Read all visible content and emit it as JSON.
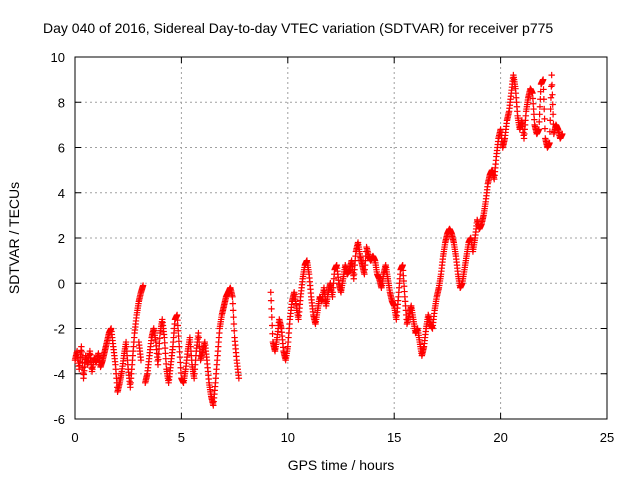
{
  "chart_data": {
    "type": "scatter",
    "title": "Day 040 of 2016, Sidereal Day-to-day VTEC variation (SDTVAR) for receiver p775",
    "xlabel": "GPS time / hours",
    "ylabel": "SDTVAR / TECUs",
    "xlim": [
      0,
      25
    ],
    "ylim": [
      -6,
      10
    ],
    "x_ticks": [
      "0",
      "5",
      "10",
      "15",
      "20",
      "25"
    ],
    "y_ticks": [
      "-6",
      "-4",
      "-2",
      "0",
      "2",
      "4",
      "6",
      "8",
      "10"
    ],
    "grid": true,
    "marker": "+",
    "color": "#ff0000",
    "series": [
      {
        "name": "",
        "points": [
          [
            0.0,
            -3.4
          ],
          [
            0.1,
            -3.0
          ],
          [
            0.2,
            -3.8
          ],
          [
            0.3,
            -2.8
          ],
          [
            0.4,
            -4.2
          ],
          [
            0.5,
            -3.2
          ],
          [
            0.6,
            -3.6
          ],
          [
            0.7,
            -3.0
          ],
          [
            0.8,
            -3.9
          ],
          [
            0.9,
            -3.3
          ],
          [
            1.0,
            -3.5
          ],
          [
            1.1,
            -3.1
          ],
          [
            1.2,
            -3.7
          ],
          [
            1.3,
            -3.4
          ],
          [
            1.4,
            -3.0
          ],
          [
            1.5,
            -2.6
          ],
          [
            1.6,
            -2.2
          ],
          [
            1.7,
            -2.0
          ],
          [
            1.8,
            -2.8
          ],
          [
            1.9,
            -3.6
          ],
          [
            2.0,
            -4.8
          ],
          [
            2.1,
            -4.4
          ],
          [
            2.2,
            -3.9
          ],
          [
            2.3,
            -3.2
          ],
          [
            2.4,
            -2.6
          ],
          [
            2.5,
            -3.8
          ],
          [
            2.6,
            -4.6
          ],
          [
            2.7,
            -3.4
          ],
          [
            2.8,
            -2.2
          ],
          [
            2.9,
            -1.4
          ],
          [
            3.0,
            -0.8
          ],
          [
            3.1,
            -0.4
          ],
          [
            3.2,
            -0.1
          ],
          [
            3.0,
            -2.6
          ],
          [
            3.1,
            -3.4
          ],
          [
            3.3,
            -4.4
          ],
          [
            3.4,
            -4.0
          ],
          [
            3.5,
            -3.2
          ],
          [
            3.6,
            -2.4
          ],
          [
            3.7,
            -2.0
          ],
          [
            3.8,
            -2.6
          ],
          [
            3.9,
            -3.6
          ],
          [
            4.0,
            -2.2
          ],
          [
            4.1,
            -1.6
          ],
          [
            4.2,
            -2.4
          ],
          [
            4.3,
            -3.8
          ],
          [
            4.4,
            -4.4
          ],
          [
            4.5,
            -3.6
          ],
          [
            4.6,
            -2.8
          ],
          [
            4.7,
            -1.6
          ],
          [
            4.8,
            -1.4
          ],
          [
            4.9,
            -2.8
          ],
          [
            5.0,
            -4.2
          ],
          [
            5.1,
            -4.4
          ],
          [
            5.2,
            -3.8
          ],
          [
            5.3,
            -3.0
          ],
          [
            5.4,
            -2.4
          ],
          [
            5.5,
            -3.6
          ],
          [
            5.6,
            -4.2
          ],
          [
            5.7,
            -3.0
          ],
          [
            5.8,
            -2.2
          ],
          [
            5.9,
            -3.4
          ],
          [
            6.0,
            -3.0
          ],
          [
            6.1,
            -2.6
          ],
          [
            6.2,
            -3.4
          ],
          [
            6.3,
            -4.4
          ],
          [
            6.4,
            -5.0
          ],
          [
            6.5,
            -5.4
          ],
          [
            6.6,
            -4.4
          ],
          [
            6.7,
            -3.2
          ],
          [
            6.8,
            -2.0
          ],
          [
            6.9,
            -1.4
          ],
          [
            7.0,
            -1.0
          ],
          [
            7.1,
            -0.6
          ],
          [
            7.2,
            -0.4
          ],
          [
            7.3,
            -0.2
          ],
          [
            7.4,
            -0.6
          ],
          [
            7.5,
            -2.4
          ],
          [
            7.6,
            -3.4
          ],
          [
            7.7,
            -4.2
          ],
          [
            9.2,
            -0.4
          ],
          [
            9.3,
            -2.6
          ],
          [
            9.4,
            -3.0
          ],
          [
            9.5,
            -2.4
          ],
          [
            9.6,
            -1.6
          ],
          [
            9.7,
            -2.0
          ],
          [
            9.8,
            -3.0
          ],
          [
            9.9,
            -3.4
          ],
          [
            10.0,
            -2.8
          ],
          [
            10.1,
            -1.6
          ],
          [
            10.2,
            -0.8
          ],
          [
            10.3,
            -0.4
          ],
          [
            10.4,
            -1.0
          ],
          [
            10.5,
            -1.6
          ],
          [
            10.6,
            -0.6
          ],
          [
            10.7,
            0.2
          ],
          [
            10.8,
            0.8
          ],
          [
            10.9,
            1.0
          ],
          [
            11.0,
            0.4
          ],
          [
            11.1,
            -0.6
          ],
          [
            11.2,
            -1.4
          ],
          [
            11.3,
            -1.8
          ],
          [
            11.4,
            -1.2
          ],
          [
            11.5,
            -0.6
          ],
          [
            11.6,
            -0.8
          ],
          [
            11.7,
            -0.2
          ],
          [
            11.8,
            -1.0
          ],
          [
            11.9,
            -0.4
          ],
          [
            12.0,
            0.0
          ],
          [
            12.1,
            -0.6
          ],
          [
            12.2,
            0.6
          ],
          [
            12.3,
            0.8
          ],
          [
            12.4,
            0.0
          ],
          [
            12.5,
            -0.4
          ],
          [
            12.6,
            0.2
          ],
          [
            12.7,
            0.8
          ],
          [
            12.8,
            0.4
          ],
          [
            12.9,
            0.6
          ],
          [
            13.0,
            1.0
          ],
          [
            13.1,
            0.2
          ],
          [
            13.2,
            1.4
          ],
          [
            13.3,
            1.8
          ],
          [
            13.4,
            1.2
          ],
          [
            13.5,
            0.8
          ],
          [
            13.6,
            0.4
          ],
          [
            13.7,
            1.6
          ],
          [
            13.8,
            1.2
          ],
          [
            13.9,
            1.0
          ],
          [
            14.0,
            1.2
          ],
          [
            14.1,
            1.0
          ],
          [
            14.2,
            0.4
          ],
          [
            14.3,
            0.2
          ],
          [
            14.4,
            -0.2
          ],
          [
            14.5,
            0.4
          ],
          [
            14.6,
            0.8
          ],
          [
            14.7,
            0.2
          ],
          [
            14.8,
            -0.4
          ],
          [
            14.9,
            -0.8
          ],
          [
            15.0,
            -1.0
          ],
          [
            15.1,
            -1.6
          ],
          [
            15.2,
            -0.6
          ],
          [
            15.3,
            0.6
          ],
          [
            15.4,
            0.8
          ],
          [
            15.5,
            -0.6
          ],
          [
            15.6,
            -1.8
          ],
          [
            15.7,
            -1.4
          ],
          [
            15.8,
            -1.0
          ],
          [
            15.9,
            -1.6
          ],
          [
            16.0,
            -2.2
          ],
          [
            16.1,
            -2.0
          ],
          [
            16.2,
            -2.6
          ],
          [
            16.3,
            -3.2
          ],
          [
            16.4,
            -2.8
          ],
          [
            16.5,
            -2.0
          ],
          [
            16.6,
            -1.4
          ],
          [
            16.7,
            -1.8
          ],
          [
            16.8,
            -2.0
          ],
          [
            16.9,
            -1.2
          ],
          [
            17.0,
            -0.6
          ],
          [
            17.1,
            -0.2
          ],
          [
            17.2,
            0.4
          ],
          [
            17.3,
            1.2
          ],
          [
            17.4,
            1.8
          ],
          [
            17.5,
            2.2
          ],
          [
            17.6,
            2.4
          ],
          [
            17.7,
            2.2
          ],
          [
            17.8,
            1.8
          ],
          [
            17.9,
            1.2
          ],
          [
            18.0,
            0.4
          ],
          [
            18.1,
            -0.2
          ],
          [
            18.2,
            0.0
          ],
          [
            18.3,
            0.6
          ],
          [
            18.4,
            1.2
          ],
          [
            18.5,
            1.8
          ],
          [
            18.6,
            2.0
          ],
          [
            18.7,
            1.4
          ],
          [
            18.8,
            2.0
          ],
          [
            18.9,
            2.8
          ],
          [
            19.0,
            2.4
          ],
          [
            19.1,
            2.6
          ],
          [
            19.2,
            3.0
          ],
          [
            19.3,
            3.6
          ],
          [
            19.4,
            4.4
          ],
          [
            19.5,
            4.8
          ],
          [
            19.6,
            5.0
          ],
          [
            19.7,
            4.6
          ],
          [
            19.8,
            5.6
          ],
          [
            19.9,
            6.4
          ],
          [
            20.0,
            6.8
          ],
          [
            20.1,
            6.0
          ],
          [
            20.2,
            6.4
          ],
          [
            20.3,
            7.2
          ],
          [
            20.4,
            7.6
          ],
          [
            20.5,
            8.4
          ],
          [
            20.6,
            9.2
          ],
          [
            20.7,
            8.6
          ],
          [
            20.8,
            7.4
          ],
          [
            20.9,
            6.8
          ],
          [
            21.0,
            7.2
          ],
          [
            21.1,
            6.4
          ],
          [
            21.2,
            7.6
          ],
          [
            21.3,
            8.2
          ],
          [
            21.4,
            8.6
          ],
          [
            21.5,
            8.4
          ],
          [
            21.6,
            7.0
          ],
          [
            21.7,
            6.6
          ],
          [
            21.8,
            6.8
          ],
          [
            21.9,
            8.8
          ],
          [
            22.0,
            9.0
          ],
          [
            22.1,
            6.4
          ],
          [
            22.2,
            6.0
          ],
          [
            22.3,
            6.2
          ],
          [
            22.4,
            9.2
          ],
          [
            22.5,
            6.6
          ],
          [
            22.6,
            7.0
          ],
          [
            22.7,
            6.8
          ],
          [
            22.8,
            6.4
          ],
          [
            22.9,
            6.6
          ]
        ]
      }
    ]
  }
}
